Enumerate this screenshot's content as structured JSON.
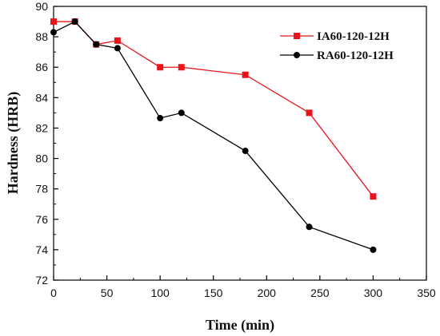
{
  "chart_data": {
    "type": "line",
    "xlabel": "Time (min)",
    "ylabel": "Hardness (HRB)",
    "xlim": [
      0,
      350
    ],
    "ylim": [
      72,
      90
    ],
    "x_ticks": [
      0,
      50,
      100,
      150,
      200,
      250,
      300,
      350
    ],
    "y_ticks": [
      72,
      74,
      76,
      78,
      80,
      82,
      84,
      86,
      88,
      90
    ],
    "grid": false,
    "legend_position": "top-right",
    "series": [
      {
        "name": "IA60-120-12H",
        "color": "#e8141c",
        "marker": "square",
        "x": [
          0,
          20,
          40,
          60,
          100,
          120,
          180,
          240,
          300
        ],
        "y": [
          89.0,
          89.0,
          87.5,
          87.75,
          86.0,
          86.0,
          85.5,
          83.0,
          77.5
        ]
      },
      {
        "name": "RA60-120-12H",
        "color": "#000000",
        "marker": "circle",
        "x": [
          0,
          20,
          40,
          60,
          100,
          120,
          180,
          240,
          300
        ],
        "y": [
          88.3,
          89.0,
          87.5,
          87.25,
          82.65,
          83.0,
          80.5,
          75.5,
          74.0
        ]
      }
    ]
  }
}
